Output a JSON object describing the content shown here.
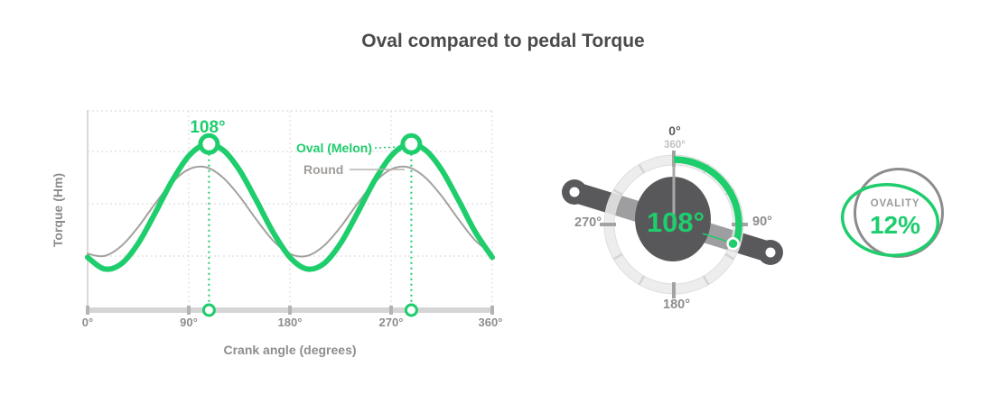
{
  "page": {
    "title": "Oval compared to pedal Torque"
  },
  "colors": {
    "accent_green": "#1ecd6c",
    "round_curve_gray": "#a5a1a0",
    "dark_gray": "#58585a",
    "label_gray": "#8d8d8d"
  },
  "chart_data": {
    "type": "line",
    "title": "Oval compared to pedal Torque",
    "xlabel": "Crank angle (degrees)",
    "ylabel": "Torque (Hm)",
    "xlim": [
      0,
      360
    ],
    "value_range": [
      0,
      100
    ],
    "grid": true,
    "x_tick_values": [
      0,
      90,
      180,
      270,
      360
    ],
    "x_tick_labels": [
      "0°",
      "90°",
      "180°",
      "270°",
      "360°"
    ],
    "x": [
      0,
      15,
      30,
      45,
      60,
      75,
      90,
      105,
      120,
      135,
      150,
      165,
      180,
      195,
      210,
      225,
      240,
      255,
      270,
      285,
      300,
      315,
      330,
      345,
      360
    ],
    "series": [
      {
        "name": "Oval (Melon)",
        "color": "#1ecd6c",
        "values": [
          25.6,
          19.7,
          22.3,
          32.7,
          48.2,
          64.5,
          77.4,
          83.3,
          80.7,
          70.3,
          54.8,
          38.5,
          25.6,
          19.7,
          22.3,
          32.7,
          48.2,
          64.5,
          77.4,
          83.3,
          80.7,
          70.3,
          54.8,
          38.5,
          25.6
        ]
      },
      {
        "name": "Round",
        "color": "#a5a1a0",
        "values": [
          27.4,
          26.3,
          31.4,
          41.1,
          53.0,
          63.8,
          70.6,
          71.7,
          66.6,
          56.9,
          45.0,
          34.2,
          27.4,
          26.3,
          31.4,
          41.1,
          53.0,
          63.8,
          70.6,
          71.7,
          66.6,
          56.9,
          45.0,
          34.2,
          27.4
        ]
      }
    ],
    "peaks": {
      "label": "108°",
      "angles": [
        108,
        288
      ],
      "value": 83.5
    }
  },
  "dial": {
    "top_label": "0°",
    "top_sub_label": "360°",
    "right_label": "90°",
    "bottom_label": "180°",
    "left_label": "270°",
    "value": "108°",
    "arc_start_deg": 0,
    "arc_sweep_deg": 108
  },
  "badge": {
    "label": "OVALITY",
    "value": "12%"
  }
}
